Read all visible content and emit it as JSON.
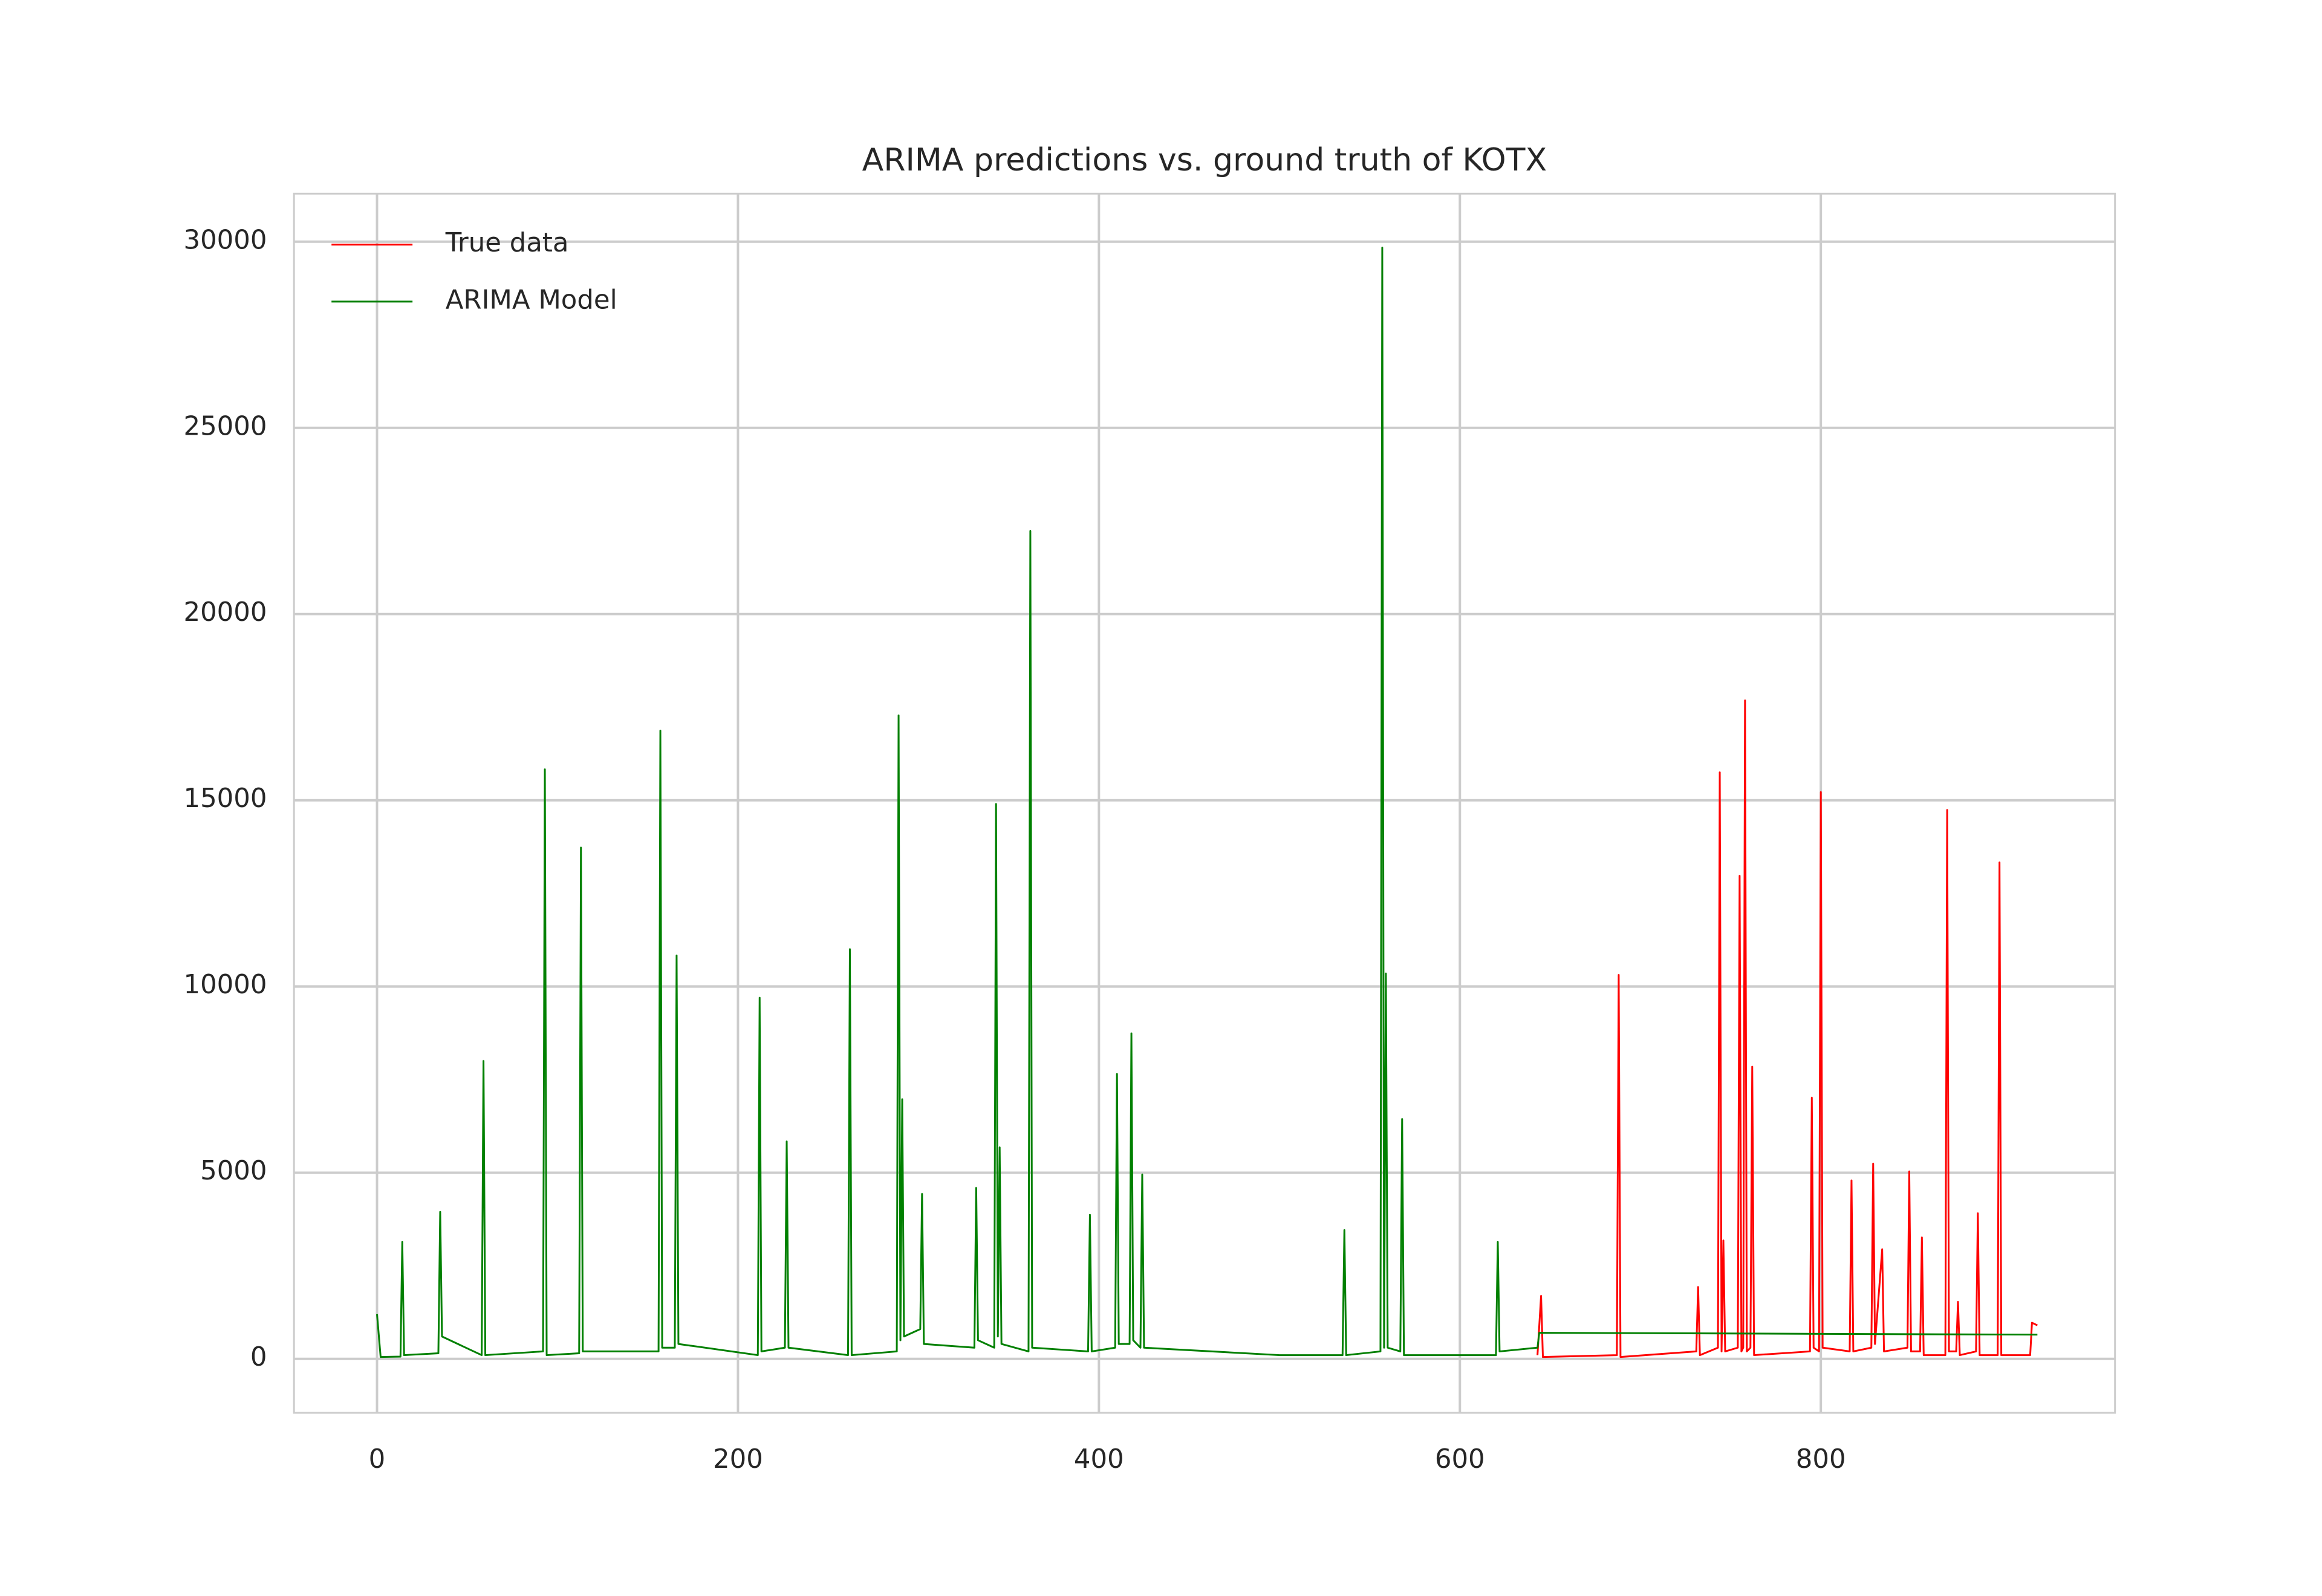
{
  "chart_data": {
    "type": "line",
    "title": "ARIMA predictions vs. ground truth of KOTX",
    "xlim": [
      -46,
      963
    ],
    "ylim": [
      -1450,
      31290
    ],
    "xticks": [
      0,
      200,
      400,
      600,
      800
    ],
    "yticks": [
      0,
      5000,
      10000,
      15000,
      20000,
      25000,
      30000
    ],
    "grid": true,
    "legend": "upper left",
    "series": [
      {
        "name": "True data",
        "color": "#ff0000",
        "x": [
          643,
          645,
          646,
          687,
          688,
          689,
          731,
          732,
          733,
          743,
          744,
          745,
          746,
          747,
          754,
          755,
          756,
          757,
          758,
          759,
          761,
          762,
          763,
          794,
          795,
          796,
          799,
          800,
          801,
          816,
          817,
          818,
          828,
          829,
          830,
          834,
          835,
          848,
          849,
          850,
          855,
          856,
          857,
          869,
          870,
          871,
          875,
          876,
          877,
          886,
          887,
          888,
          898,
          899,
          900,
          916,
          917,
          920
        ],
        "values": [
          100,
          1690,
          50,
          100,
          10310,
          50,
          200,
          1930,
          100,
          300,
          15750,
          200,
          3180,
          200,
          300,
          12970,
          200,
          300,
          17680,
          200,
          300,
          7850,
          100,
          200,
          7010,
          300,
          200,
          15220,
          300,
          200,
          4790,
          200,
          300,
          5240,
          400,
          2940,
          200,
          300,
          5030,
          200,
          200,
          3260,
          100,
          100,
          14740,
          200,
          200,
          1530,
          100,
          200,
          3910,
          100,
          100,
          13330,
          100,
          100,
          970,
          900
        ]
      },
      {
        "name": "ARIMA Model",
        "color": "#008000",
        "x": [
          0,
          2,
          13,
          14,
          15,
          34,
          35,
          36,
          58,
          59,
          60,
          92,
          93,
          94,
          112,
          113,
          114,
          156,
          157,
          158,
          165,
          166,
          167,
          211,
          212,
          213,
          226,
          227,
          228,
          261,
          262,
          263,
          288,
          289,
          290,
          291,
          292,
          301,
          302,
          303,
          331,
          332,
          333,
          342,
          343,
          344,
          345,
          346,
          361,
          362,
          363,
          394,
          395,
          396,
          409,
          410,
          411,
          417,
          418,
          419,
          423,
          424,
          425,
          500,
          535,
          536,
          537,
          556,
          557,
          558,
          559,
          560,
          567,
          568,
          569,
          620,
          621,
          622,
          643,
          644,
          920
        ],
        "values": [
          1200,
          50,
          60,
          3140,
          100,
          150,
          3950,
          600,
          100,
          8000,
          100,
          200,
          15830,
          100,
          150,
          13730,
          200,
          200,
          16870,
          300,
          300,
          10830,
          400,
          100,
          9700,
          200,
          300,
          5840,
          300,
          100,
          11000,
          100,
          200,
          17280,
          500,
          6970,
          600,
          800,
          4430,
          400,
          300,
          4590,
          500,
          300,
          14900,
          600,
          5680,
          400,
          200,
          22230,
          300,
          200,
          3870,
          200,
          300,
          7650,
          400,
          400,
          8740,
          500,
          300,
          4950,
          300,
          100,
          100,
          3460,
          100,
          200,
          29840,
          300,
          10350,
          300,
          200,
          6440,
          100,
          100,
          3140,
          200,
          300,
          700,
          650
        ]
      }
    ]
  }
}
